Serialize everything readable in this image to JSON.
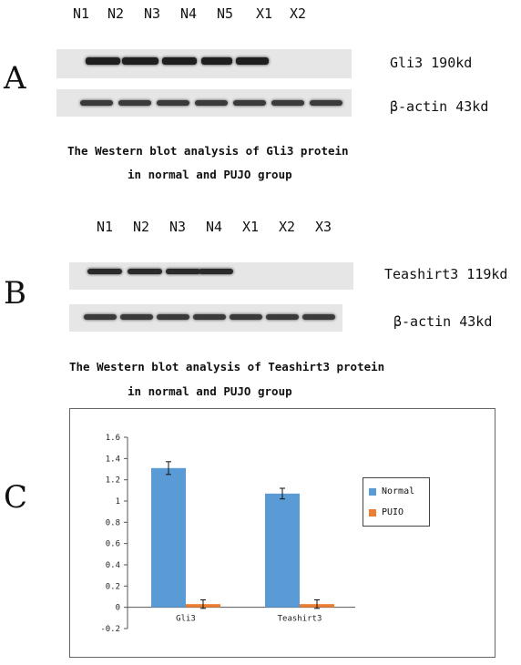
{
  "panels": {
    "a": {
      "letter": "A",
      "lanes": [
        "N1",
        "N2",
        "N3",
        "N4",
        "N5",
        "X1",
        "X2"
      ],
      "target_label": "Gli3 190kd",
      "control_label": "β-actin 43kd",
      "caption_line1": "The Western blot analysis of Gli3 protein",
      "caption_line2": "in normal and PUJO group"
    },
    "b": {
      "letter": "B",
      "lanes": [
        "N1",
        "N2",
        "N3",
        "N4",
        "X1",
        "X2",
        "X3"
      ],
      "target_label": "Teashirt3 119kd",
      "control_label": "β-actin 43kd",
      "caption_line1": "The Western blot analysis of Teashirt3 protein",
      "caption_line2": "in normal and PUJO group"
    },
    "c": {
      "letter": "C"
    }
  },
  "chart_data": {
    "type": "bar",
    "categories": [
      "Gli3",
      "Teashirt3"
    ],
    "series": [
      {
        "name": "Normal",
        "values": [
          1.31,
          1.07
        ],
        "errors": [
          0.06,
          0.05
        ],
        "color": "#5b9bd5"
      },
      {
        "name": "PUIO",
        "values": [
          0.03,
          0.03
        ],
        "errors": [
          0.04,
          0.04
        ],
        "color": "#ed7d31"
      }
    ],
    "yticks": [
      "-0.2",
      "0",
      "0.2",
      "0.4",
      "0.6",
      "0.8",
      "1",
      "1.2",
      "1.4",
      "1.6"
    ],
    "ylim": [
      -0.2,
      1.6
    ],
    "legend_position": "right",
    "grid": false
  }
}
